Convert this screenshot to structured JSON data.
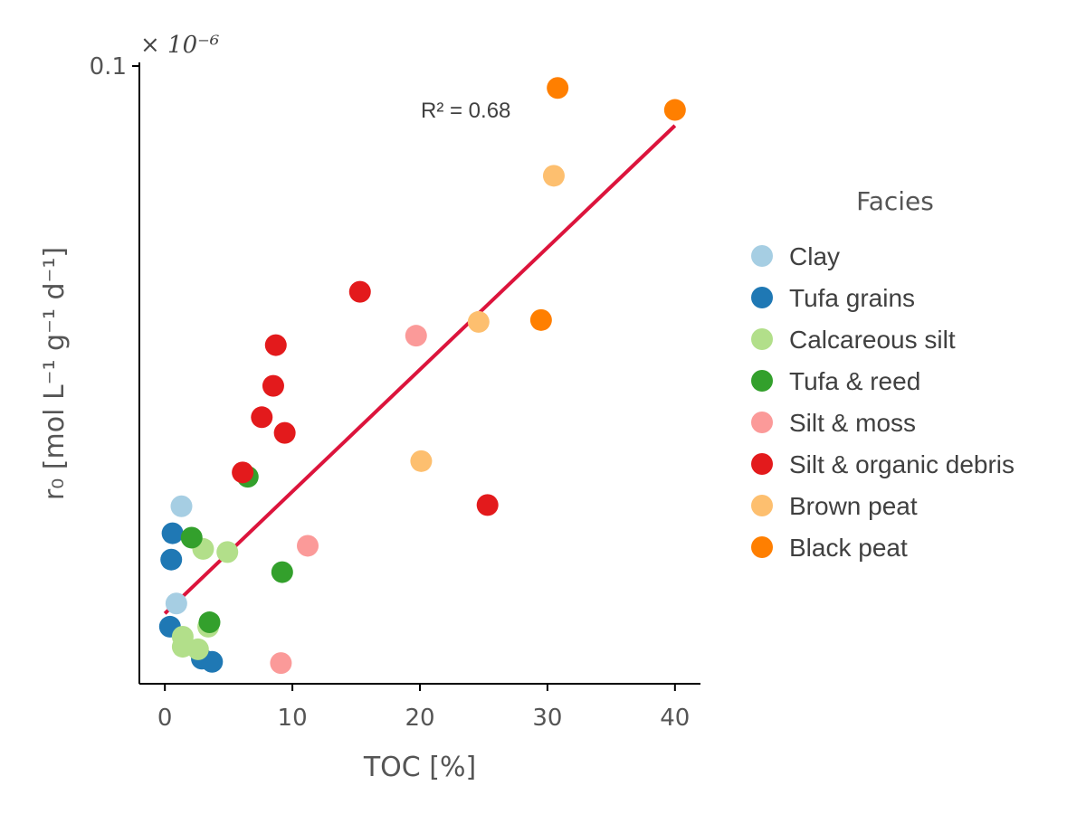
{
  "chart_data": {
    "type": "scatter",
    "xlabel": "TOC [%]",
    "ylabel": "r₀ [mol L⁻¹ g⁻¹ d⁻¹]",
    "y_offset_label": "× 10⁻⁶",
    "xlim": [
      -2,
      42
    ],
    "ylim": [
      0,
      0.1
    ],
    "x_ticks": [
      0,
      10,
      20,
      30,
      40
    ],
    "x_tick_labels": [
      "0",
      "10",
      "20",
      "30",
      "40"
    ],
    "y_ticks": [
      0.1
    ],
    "y_tick_labels": [
      "0.1"
    ],
    "annotation": "R² = 0.68",
    "legend_title": "Facies",
    "legend_position": "right",
    "fit_line": {
      "x": [
        0,
        40
      ],
      "y": [
        0.0127,
        0.0905
      ],
      "color": "#dc143c"
    },
    "series": [
      {
        "name": "Clay",
        "color": "#a6cee3",
        "points": [
          [
            1.3,
            0.0298
          ],
          [
            0.9,
            0.0143
          ]
        ]
      },
      {
        "name": "Tufa grains",
        "color": "#1f78b4",
        "points": [
          [
            0.6,
            0.0255
          ],
          [
            0.5,
            0.0213
          ],
          [
            0.4,
            0.0106
          ],
          [
            2.9,
            0.0055
          ],
          [
            3.7,
            0.005
          ]
        ]
      },
      {
        "name": "Calcareous silt",
        "color": "#b2df8a",
        "points": [
          [
            3.0,
            0.023
          ],
          [
            4.9,
            0.0225
          ],
          [
            1.4,
            0.009
          ],
          [
            1.4,
            0.0074
          ],
          [
            2.6,
            0.007
          ],
          [
            3.4,
            0.0106
          ]
        ]
      },
      {
        "name": "Tufa & reed",
        "color": "#33a02c",
        "points": [
          [
            2.1,
            0.0248
          ],
          [
            6.5,
            0.0345
          ],
          [
            9.2,
            0.0193
          ],
          [
            3.5,
            0.0113
          ]
        ]
      },
      {
        "name": "Silt & moss",
        "color": "#fb9a99",
        "points": [
          [
            19.7,
            0.057
          ],
          [
            11.2,
            0.0235
          ],
          [
            9.1,
            0.0048
          ]
        ]
      },
      {
        "name": "Silt & organic debris",
        "color": "#e31a1c",
        "points": [
          [
            15.3,
            0.064
          ],
          [
            8.7,
            0.0555
          ],
          [
            8.5,
            0.049
          ],
          [
            7.6,
            0.044
          ],
          [
            9.4,
            0.0415
          ],
          [
            6.1,
            0.0352
          ],
          [
            25.3,
            0.03
          ]
        ]
      },
      {
        "name": "Brown peat",
        "color": "#fdbf6f",
        "points": [
          [
            30.5,
            0.0825
          ],
          [
            24.6,
            0.0592
          ],
          [
            20.1,
            0.037
          ]
        ]
      },
      {
        "name": "Black peat",
        "color": "#ff7f00",
        "points": [
          [
            30.8,
            0.0965
          ],
          [
            40.0,
            0.093
          ],
          [
            29.5,
            0.0595
          ]
        ]
      }
    ]
  }
}
